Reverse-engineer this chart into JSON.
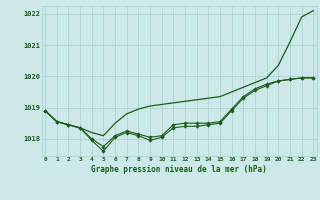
{
  "title": "Graphe pression niveau de la mer (hPa)",
  "bg_color": "#cce8e8",
  "grid_color": "#aacfcf",
  "line_color": "#1a5c1a",
  "marker_color": "#1a5c1a",
  "hours": [
    0,
    1,
    2,
    3,
    4,
    5,
    6,
    7,
    8,
    9,
    10,
    11,
    12,
    13,
    14,
    15,
    16,
    17,
    18,
    19,
    20,
    21,
    22,
    23
  ],
  "line_upper": [
    1018.9,
    1018.55,
    1018.45,
    1018.35,
    1018.2,
    1018.1,
    1018.5,
    1018.8,
    1018.95,
    1019.05,
    1019.1,
    1019.15,
    1019.2,
    1019.25,
    1019.3,
    1019.35,
    1019.5,
    1019.65,
    1019.8,
    1019.95,
    1020.35,
    1021.1,
    1021.9,
    1022.1
  ],
  "line_mid": [
    1018.9,
    1018.55,
    1018.45,
    1018.35,
    1018.0,
    1017.75,
    1018.1,
    1018.25,
    1018.15,
    1018.05,
    1018.1,
    1018.45,
    1018.5,
    1018.5,
    1018.5,
    1018.55,
    1018.95,
    1019.35,
    1019.6,
    1019.75,
    1019.85,
    1019.9,
    1019.95,
    1019.95
  ],
  "line_low": [
    1018.9,
    1018.55,
    1018.45,
    1018.35,
    1017.95,
    1017.6,
    1018.05,
    1018.2,
    1018.1,
    1017.95,
    1018.05,
    1018.35,
    1018.4,
    1018.4,
    1018.45,
    1018.5,
    1018.9,
    1019.3,
    1019.55,
    1019.7,
    1019.85,
    1019.9,
    1019.95,
    1019.95
  ],
  "ylim": [
    1017.45,
    1022.25
  ],
  "yticks": [
    1018,
    1019,
    1020,
    1021,
    1022
  ],
  "xlim": [
    -0.3,
    23.3
  ]
}
